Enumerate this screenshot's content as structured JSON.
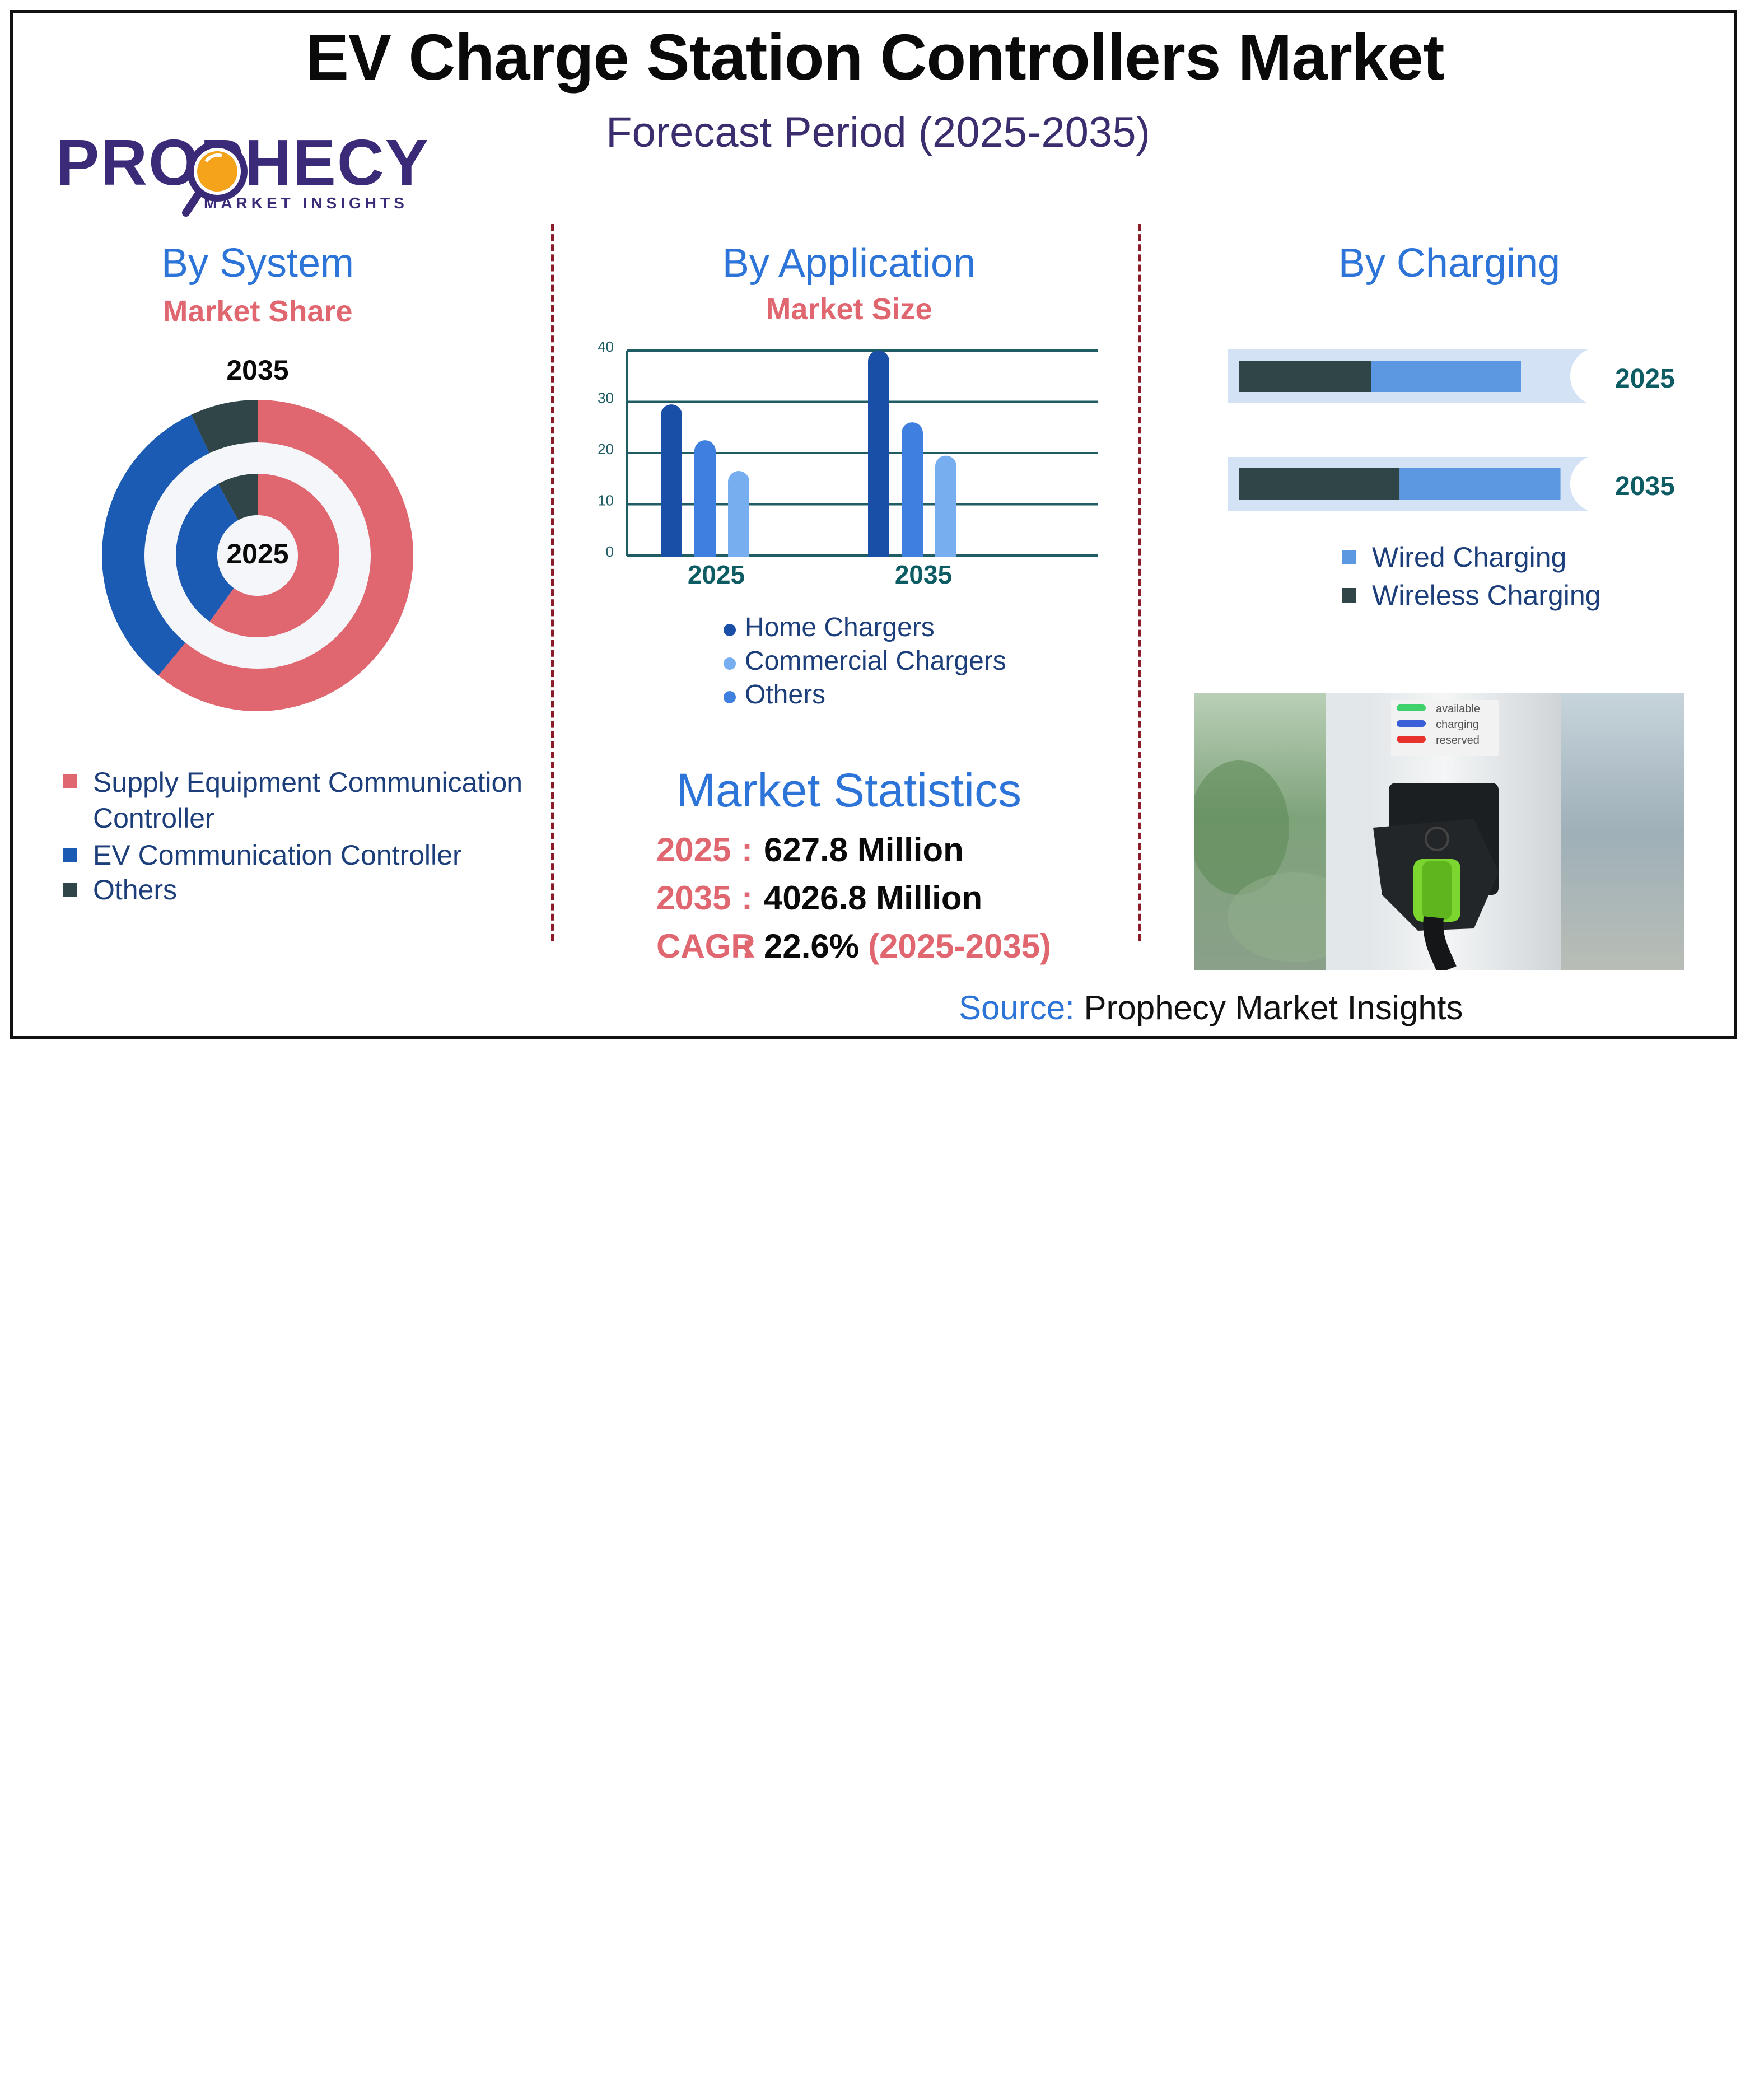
{
  "header": {
    "title": "EV Charge Station Controllers Market",
    "subtitle": "Forecast Period (2025-2035)"
  },
  "logo": {
    "name": "PROPHECY",
    "tagline": "MARKET INSIGHTS"
  },
  "colors": {
    "coral": "#e06670",
    "blue": "#2c74d8",
    "dark_blue": "#1c5bb4",
    "slate": "#2f4548",
    "teal_text": "#0d5c63",
    "navy_text": "#1c3e7a",
    "light_band": "#d3e2f5"
  },
  "system": {
    "title": "By System",
    "subtitle": "Market Share",
    "outer_label": "2035",
    "inner_label": "2025",
    "legend": [
      {
        "label": "Supply Equipment Communication Controller",
        "color": "#e06670"
      },
      {
        "label": "EV Communication Controller",
        "color": "#1c5bb4"
      },
      {
        "label": "Others",
        "color": "#2f4548"
      }
    ]
  },
  "application": {
    "title": "By Application",
    "subtitle": "Market Size",
    "legend": [
      {
        "label": "Home Chargers",
        "color": "#1a4fa8"
      },
      {
        "label": "Commercial Chargers",
        "color": "#76aef0"
      },
      {
        "label": "Others",
        "color": "#3f7fdf"
      }
    ]
  },
  "charging": {
    "title": "By Charging",
    "legend": [
      {
        "label": "Wired Charging",
        "color": "#5c97e2"
      },
      {
        "label": "Wireless Charging",
        "color": "#2f4548"
      }
    ]
  },
  "stats": {
    "title": "Market Statistics",
    "rows": [
      {
        "key": "2025",
        "value": "627.8 Million",
        "extra": ""
      },
      {
        "key": "2035",
        "value": "4026.8 Million",
        "extra": ""
      },
      {
        "key": "CAGR",
        "value": "22.6%",
        "extra": "(2025-2035)"
      }
    ]
  },
  "source": {
    "label": "Source:",
    "value": "Prophecy Market Insights"
  },
  "photo": {
    "status_lines": [
      {
        "label": "available",
        "color": "#3fd16b"
      },
      {
        "label": "charging",
        "color": "#3a5fd8"
      },
      {
        "label": "reserved",
        "color": "#e8322d"
      }
    ]
  },
  "chart_data": [
    {
      "type": "pie",
      "variant": "nested-donut",
      "categories": [
        "Supply Equipment Communication Controller",
        "EV Communication Controller",
        "Others"
      ],
      "series": [
        {
          "name": "2035",
          "values": [
            61,
            32,
            7
          ]
        },
        {
          "name": "2025",
          "values": [
            60,
            32,
            8
          ]
        }
      ]
    },
    {
      "type": "bar",
      "categories": [
        "2025",
        "2035"
      ],
      "series": [
        {
          "name": "Home Chargers",
          "values": [
            29.5,
            40
          ]
        },
        {
          "name": "Others",
          "values": [
            22.5,
            26
          ]
        },
        {
          "name": "Commercial Chargers",
          "values": [
            16.5,
            19.5
          ]
        }
      ],
      "ylim": [
        0,
        40
      ],
      "yticks": [
        0,
        10,
        20,
        30,
        40
      ],
      "grid": true
    },
    {
      "type": "bar",
      "orientation": "horizontal",
      "stacked": true,
      "categories": [
        "2025",
        "2035"
      ],
      "series": [
        {
          "name": "Wireless Charging",
          "values": [
            47,
            57
          ]
        },
        {
          "name": "Wired Charging",
          "values": [
            53,
            57
          ]
        }
      ]
    }
  ]
}
